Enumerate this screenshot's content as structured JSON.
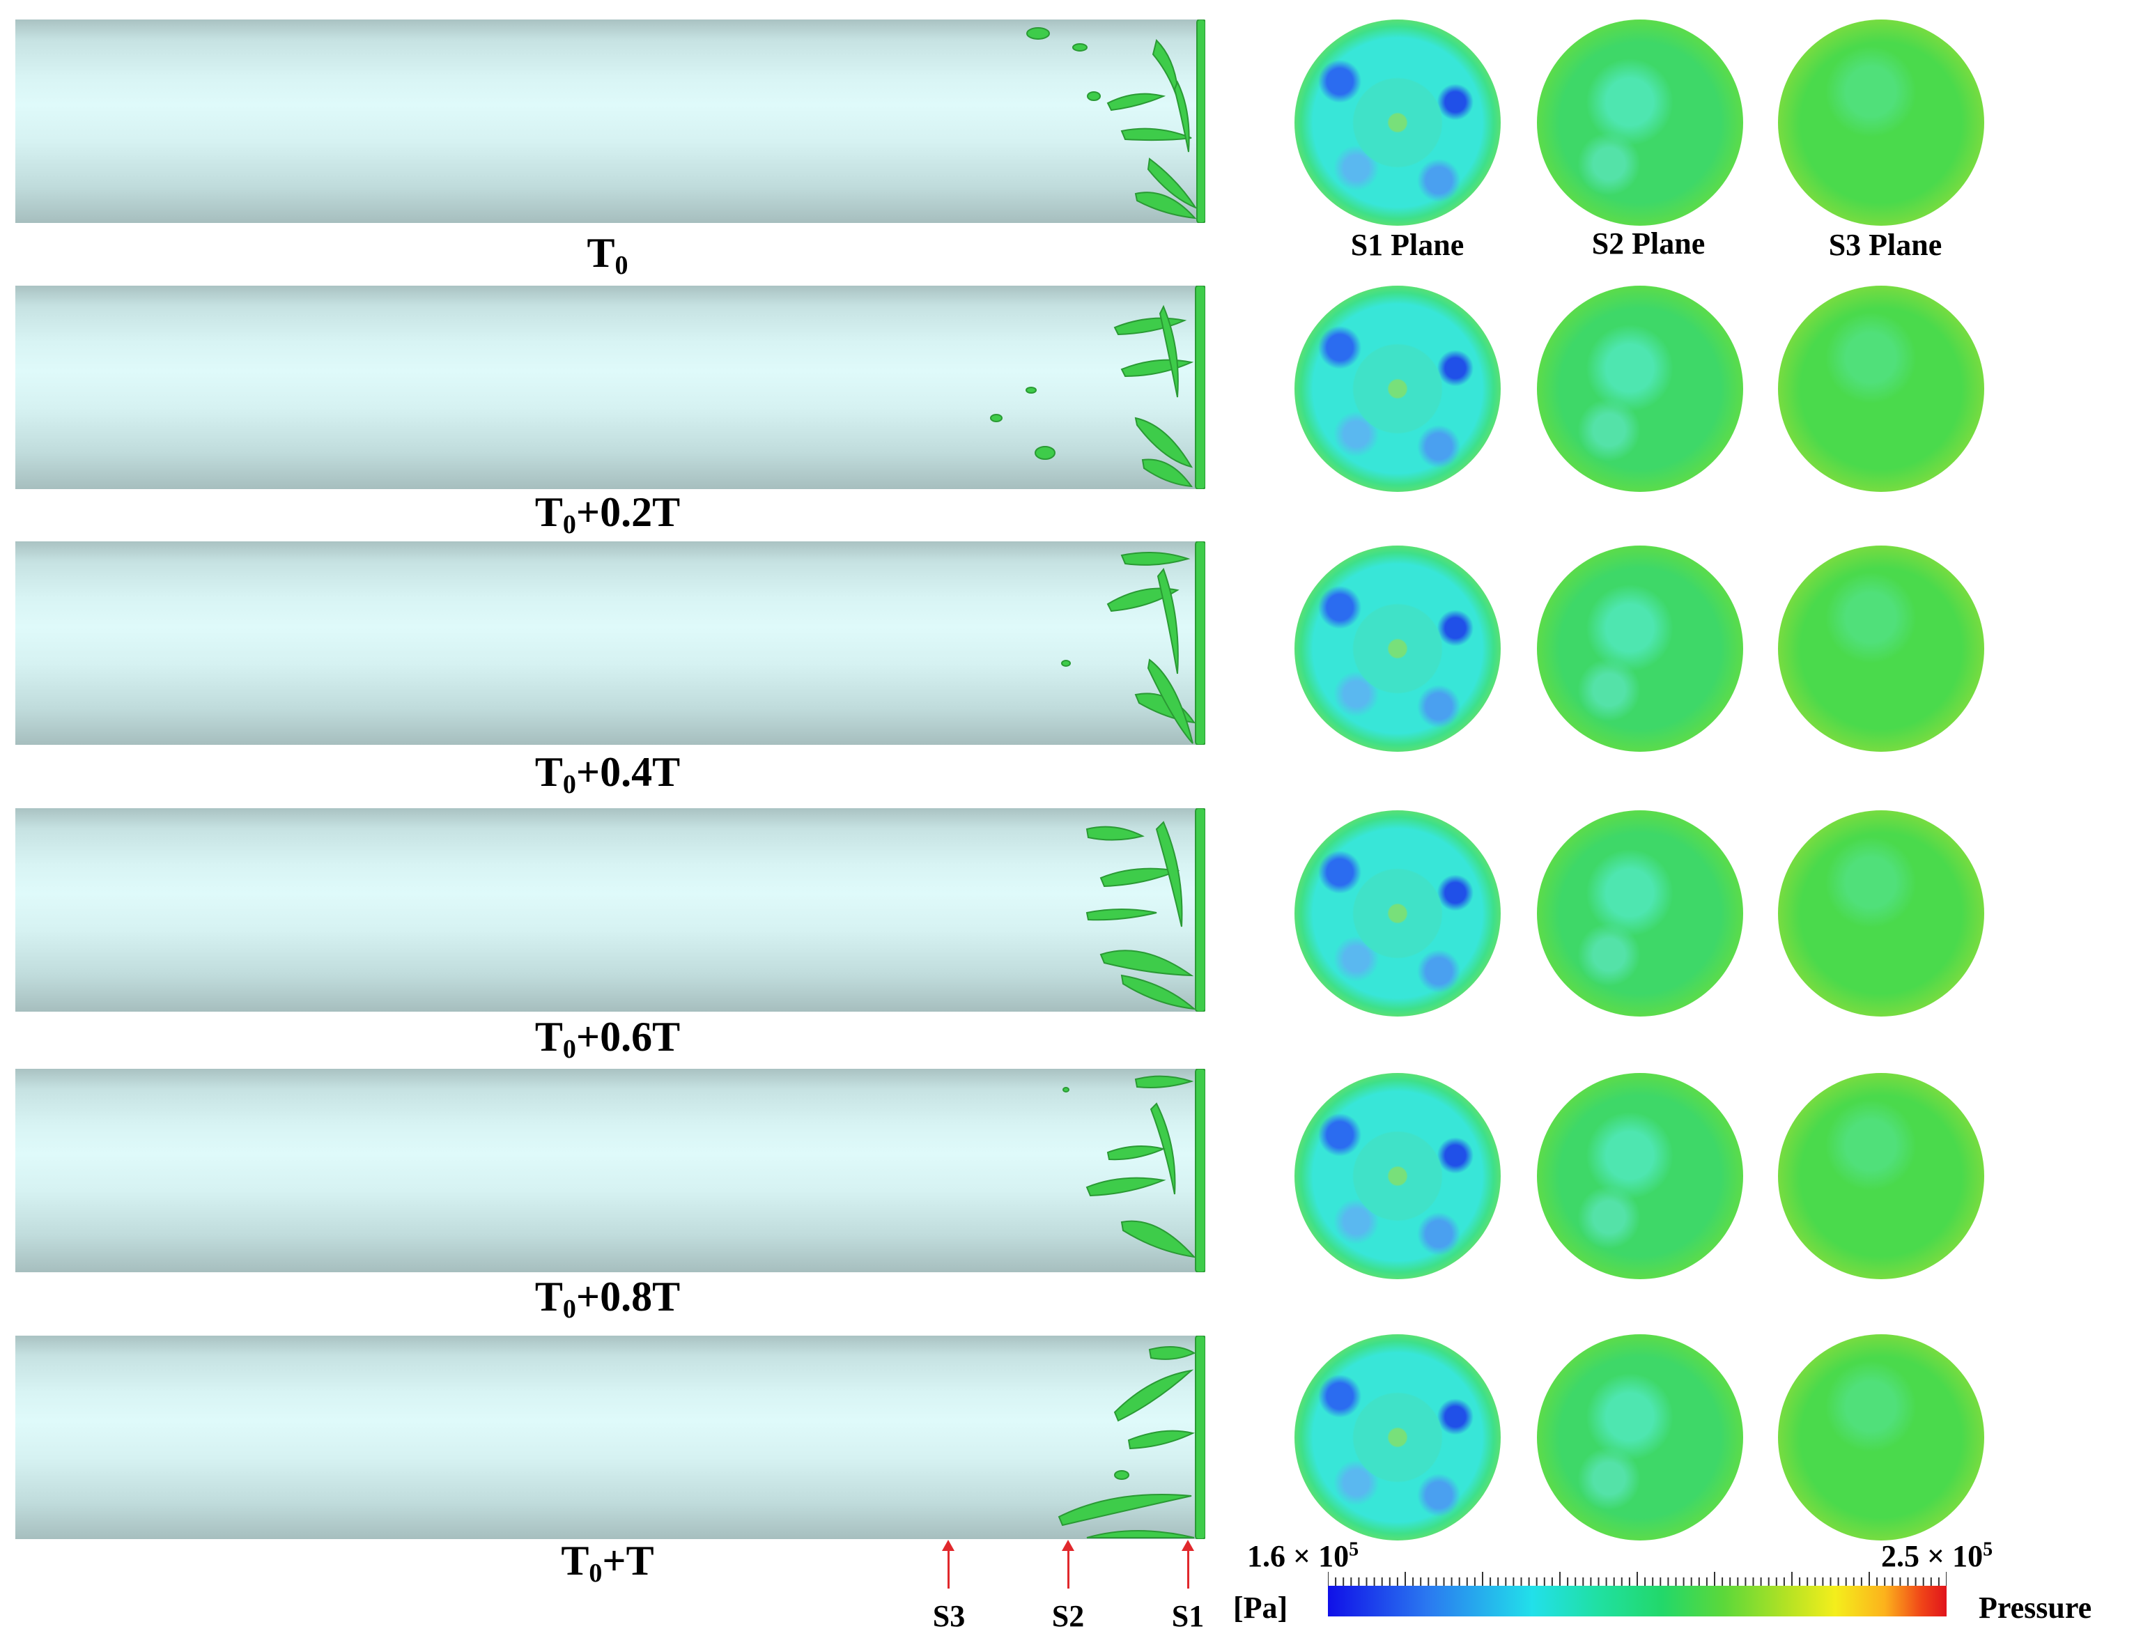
{
  "rows": [
    {
      "label_main": "T",
      "label_sub": "0",
      "label_suffix": ""
    },
    {
      "label_main": "T",
      "label_sub": "0",
      "label_suffix": "+0.2T"
    },
    {
      "label_main": "T",
      "label_sub": "0",
      "label_suffix": "+0.4T"
    },
    {
      "label_main": "T",
      "label_sub": "0",
      "label_suffix": "+0.6T"
    },
    {
      "label_main": "T",
      "label_sub": "0",
      "label_suffix": "+0.8T"
    },
    {
      "label_main": "T",
      "label_sub": "0",
      "label_suffix": "+T"
    }
  ],
  "planes": [
    "S1 Plane",
    "S2 Plane",
    "S3 Plane"
  ],
  "sections": [
    "S3",
    "S2",
    "S1"
  ],
  "colorbar": {
    "min_mantissa": "1.6 × 10",
    "max_mantissa": "2.5 × 10",
    "exponent": "5",
    "unit": "[Pa]",
    "variable": "Pressure",
    "min_value": 160000,
    "max_value": 250000
  },
  "colors": {
    "pipe": "#d8f4f4",
    "vortex": "#3ecc4a",
    "marker": "#e0282c",
    "low": "#1010e8",
    "mid": "#22d86a",
    "high": "#e0141c"
  }
}
